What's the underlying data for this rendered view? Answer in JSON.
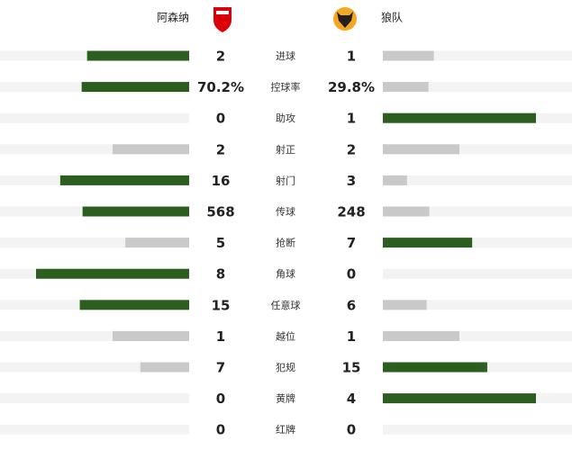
{
  "header": {
    "home": "阿森纳",
    "away": "狼队"
  },
  "stats": [
    {
      "label": "进球",
      "home": 2,
      "away": 1
    },
    {
      "label": "控球率",
      "home": 70.2,
      "away": 29.8,
      "home_label": "70.2%",
      "away_label": "29.8%"
    },
    {
      "label": "助攻",
      "home": 0,
      "away": 1
    },
    {
      "label": "射正",
      "home": 2,
      "away": 2
    },
    {
      "label": "射门",
      "home": 16,
      "away": 3
    },
    {
      "label": "传球",
      "home": 568,
      "away": 248
    },
    {
      "label": "抢断",
      "home": 5,
      "away": 7
    },
    {
      "label": "角球",
      "home": 8,
      "away": 0
    },
    {
      "label": "任意球",
      "home": 15,
      "away": 6
    },
    {
      "label": "越位",
      "home": 1,
      "away": 1
    },
    {
      "label": "犯规",
      "home": 7,
      "away": 15
    },
    {
      "label": "黄牌",
      "home": 0,
      "away": 4
    },
    {
      "label": "红牌",
      "home": 0,
      "away": 0
    }
  ]
}
